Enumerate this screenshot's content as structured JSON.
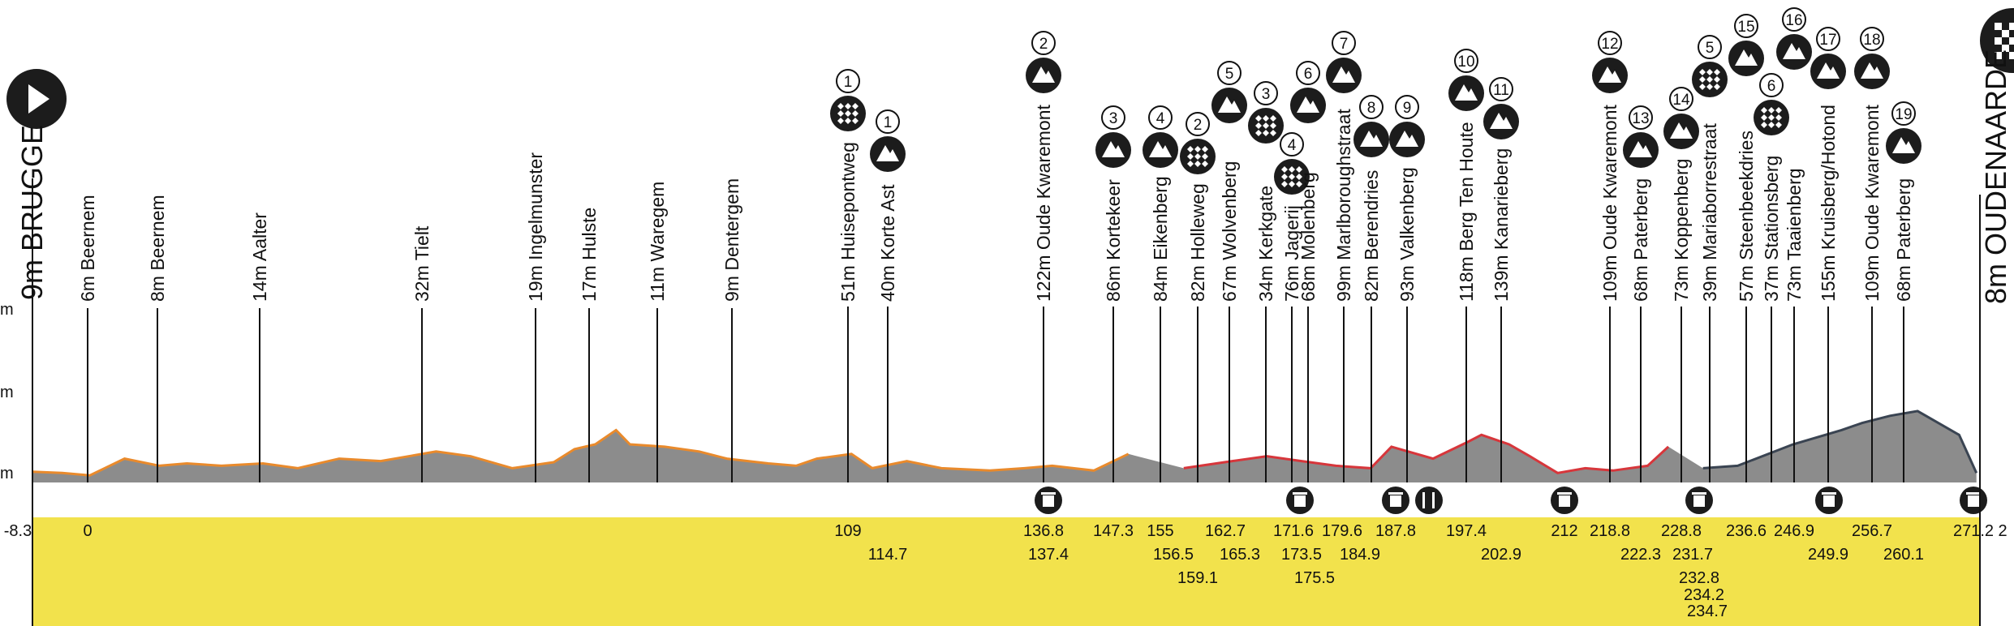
{
  "colors": {
    "yellow_band": "#f2e24c",
    "profile_fill": "#8c8c8c",
    "line_orange": "#e98a2c",
    "line_red": "#d7363b",
    "line_dark": "#3a4452",
    "icon_bg": "#1c1c1c"
  },
  "chart_data": {
    "type": "area",
    "title": "",
    "xlabel": "",
    "ylabel": "",
    "x_unit": "km",
    "y_unit": "m",
    "xlim": [
      -8.3,
      273
    ],
    "ylim": [
      0,
      160
    ],
    "y_tick_labels": [
      "m",
      "m",
      "m"
    ],
    "start": {
      "label": "9m BRUGGE",
      "km": -8.3,
      "icon": "play-icon"
    },
    "finish": {
      "label": "8m OUDENAARDE",
      "km": 272.5,
      "icon": "checkered-flag-icon",
      "km_label": "2"
    },
    "profile": [
      [
        -8.3,
        9
      ],
      [
        -4,
        8
      ],
      [
        0,
        6
      ],
      [
        5,
        20
      ],
      [
        10,
        14
      ],
      [
        14,
        16
      ],
      [
        19,
        14
      ],
      [
        25,
        16
      ],
      [
        30,
        12
      ],
      [
        36,
        20
      ],
      [
        42,
        18
      ],
      [
        50,
        26
      ],
      [
        55,
        22
      ],
      [
        61,
        12
      ],
      [
        67,
        17
      ],
      [
        70,
        28
      ],
      [
        73,
        32
      ],
      [
        76,
        44
      ],
      [
        78,
        32
      ],
      [
        83,
        30
      ],
      [
        88,
        26
      ],
      [
        92,
        20
      ],
      [
        98,
        16
      ],
      [
        102,
        14
      ],
      [
        105,
        20
      ],
      [
        110,
        24
      ],
      [
        113,
        12
      ],
      [
        118,
        18
      ],
      [
        123,
        12
      ],
      [
        130,
        10
      ],
      [
        135,
        12
      ],
      [
        139,
        14
      ],
      [
        145,
        10
      ],
      [
        150,
        24
      ],
      [
        158,
        12
      ],
      [
        165,
        18
      ],
      [
        170,
        22
      ],
      [
        175,
        18
      ],
      [
        180,
        14
      ],
      [
        185,
        12
      ],
      [
        188,
        30
      ],
      [
        194,
        20
      ],
      [
        199,
        34
      ],
      [
        201,
        40
      ],
      [
        205,
        32
      ],
      [
        208,
        22
      ],
      [
        212,
        8
      ],
      [
        216,
        12
      ],
      [
        220,
        10
      ],
      [
        225,
        14
      ],
      [
        228,
        30
      ],
      [
        233,
        12
      ],
      [
        238,
        14
      ],
      [
        246,
        32
      ],
      [
        253,
        44
      ],
      [
        256,
        50
      ],
      [
        260,
        56
      ],
      [
        264,
        60
      ],
      [
        270,
        40
      ],
      [
        272.5,
        8
      ]
    ],
    "series": [
      {
        "color": "orange",
        "x_range": [
          -8.3,
          152
        ]
      },
      {
        "color": "red",
        "x_range": [
          152,
          229
        ]
      },
      {
        "color": "dark",
        "x_range": [
          229,
          272.5
        ]
      }
    ],
    "markers": [
      {
        "km": 0,
        "label": "6m Beernem",
        "type": "town"
      },
      {
        "km": 9.5,
        "label": "8m Beernem",
        "type": "town"
      },
      {
        "km": 23.5,
        "label": "14m Aalter",
        "type": "town"
      },
      {
        "km": 46,
        "label": "32m Tielt",
        "type": "town"
      },
      {
        "km": 61.5,
        "label": "19m Ingelmunster",
        "type": "town"
      },
      {
        "km": 69,
        "label": "17m Hulste",
        "type": "town"
      },
      {
        "km": 78.5,
        "label": "11m Waregem",
        "type": "town"
      },
      {
        "km": 88,
        "label": "9m Dentergem",
        "type": "town"
      },
      {
        "km": 109,
        "label": "51m Huisepontweg",
        "type": "cobbles",
        "badge": "1"
      },
      {
        "km": 114.7,
        "label": "40m Korte Ast",
        "type": "climb",
        "badge": "1"
      },
      {
        "km": 136.8,
        "label": "122m Oude Kwaremont",
        "type": "climb",
        "badge": "2"
      },
      {
        "km": 147.3,
        "label": "86m Kortekeer",
        "type": "climb",
        "badge": "3"
      },
      {
        "km": 155,
        "label": "84m Eikenberg",
        "type": "climb",
        "badge": "4"
      },
      {
        "km": 159.1,
        "label": "82m Holleweg",
        "type": "cobbles",
        "badge": "2"
      },
      {
        "km": 162.7,
        "label": "67m Wolvenberg",
        "type": "climb",
        "badge": "5"
      },
      {
        "km": 165.3,
        "label": "34m Kerkgate",
        "type": "cobbles",
        "badge": "3"
      },
      {
        "km": 171.6,
        "label": "76m Jagerij",
        "type": "cobbles",
        "badge": "4"
      },
      {
        "km": 173.5,
        "label": "68m Molenberg",
        "type": "climb",
        "badge": "6"
      },
      {
        "km": 175.5,
        "label": "99m Marlboroughstraat",
        "type": "climb",
        "badge": "7"
      },
      {
        "km": 179.6,
        "label": "82m Berendries",
        "type": "climb",
        "badge": "8"
      },
      {
        "km": 184.9,
        "label": "93m Valkenberg",
        "type": "climb",
        "badge": "9"
      },
      {
        "km": 197.4,
        "label": "118m Berg Ten Houte",
        "type": "climb",
        "badge": "10"
      },
      {
        "km": 202.9,
        "label": "139m Kanarieberg",
        "type": "climb",
        "badge": "11"
      },
      {
        "km": 218.8,
        "label": "109m Oude Kwaremont",
        "type": "climb",
        "badge": "12"
      },
      {
        "km": 222.3,
        "label": "68m Paterberg",
        "type": "climb",
        "badge": "13"
      },
      {
        "km": 228.8,
        "label": "73m Koppenberg",
        "type": "climb",
        "badge": "14"
      },
      {
        "km": 232.8,
        "label": "39m Mariaborrestraat",
        "type": "cobbles",
        "badge": "5"
      },
      {
        "km": 234.2,
        "label": "57m Steenbeekdries",
        "type": "climb",
        "badge": "15"
      },
      {
        "km": 234.7,
        "label": "37m Stationsberg",
        "type": "cobbles",
        "badge": "6"
      },
      {
        "km": 236.6,
        "label": "73m Taaienberg",
        "type": "climb",
        "badge": "16"
      },
      {
        "km": 246.9,
        "label": "155m Kruisberg/Hotond",
        "type": "climb",
        "badge": "17"
      },
      {
        "km": 256.7,
        "label": "109m Oude Kwaremont",
        "type": "climb",
        "badge": "18"
      },
      {
        "km": 260.1,
        "label": "68m Paterberg",
        "type": "climb",
        "badge": "19"
      }
    ],
    "services": [
      {
        "km": 137.4,
        "icon": "trash-icon"
      },
      {
        "km": 171.6,
        "icon": "trash-icon"
      },
      {
        "km": 184.9,
        "icon": "trash-icon"
      },
      {
        "km": 187.8,
        "icon": "feed-zone-icon"
      },
      {
        "km": 212,
        "icon": "trash-icon"
      },
      {
        "km": 231.7,
        "icon": "trash-icon"
      },
      {
        "km": 249.9,
        "icon": "trash-icon"
      },
      {
        "km": 271.2,
        "icon": "trash-icon"
      }
    ],
    "km_labels": [
      {
        "text": "-8.3",
        "row": 0
      },
      {
        "text": "0",
        "row": 0
      },
      {
        "text": "109",
        "row": 0
      },
      {
        "text": "114.7",
        "row": 1
      },
      {
        "text": "136.8",
        "row": 0
      },
      {
        "text": "137.4",
        "row": 1
      },
      {
        "text": "147.3",
        "row": 0
      },
      {
        "text": "155",
        "row": 0
      },
      {
        "text": "156.5",
        "row": 1
      },
      {
        "text": "159.1",
        "row": 2
      },
      {
        "text": "162.7",
        "row": 0
      },
      {
        "text": "165.3",
        "row": 1
      },
      {
        "text": "171.6",
        "row": 0
      },
      {
        "text": "173.5",
        "row": 1
      },
      {
        "text": "175.5",
        "row": 2
      },
      {
        "text": "179.6",
        "row": 0
      },
      {
        "text": "187.8",
        "row": 0
      },
      {
        "text": "184.9",
        "row": 1
      },
      {
        "text": "197.4",
        "row": 0
      },
      {
        "text": "202.9",
        "row": 1
      },
      {
        "text": "212",
        "row": 0
      },
      {
        "text": "218.8",
        "row": 0
      },
      {
        "text": "222.3",
        "row": 1
      },
      {
        "text": "228.8",
        "row": 0
      },
      {
        "text": "231.7",
        "row": 1
      },
      {
        "text": "232.8",
        "row": 2
      },
      {
        "text": "234.2",
        "row": 3
      },
      {
        "text": "234.7",
        "row": 4
      },
      {
        "text": "236.6",
        "row": 0
      },
      {
        "text": "246.9",
        "row": 0
      },
      {
        "text": "249.9",
        "row": 1
      },
      {
        "text": "256.7",
        "row": 0
      },
      {
        "text": "260.1",
        "row": 1
      },
      {
        "text": "271.2",
        "row": 0
      }
    ]
  }
}
